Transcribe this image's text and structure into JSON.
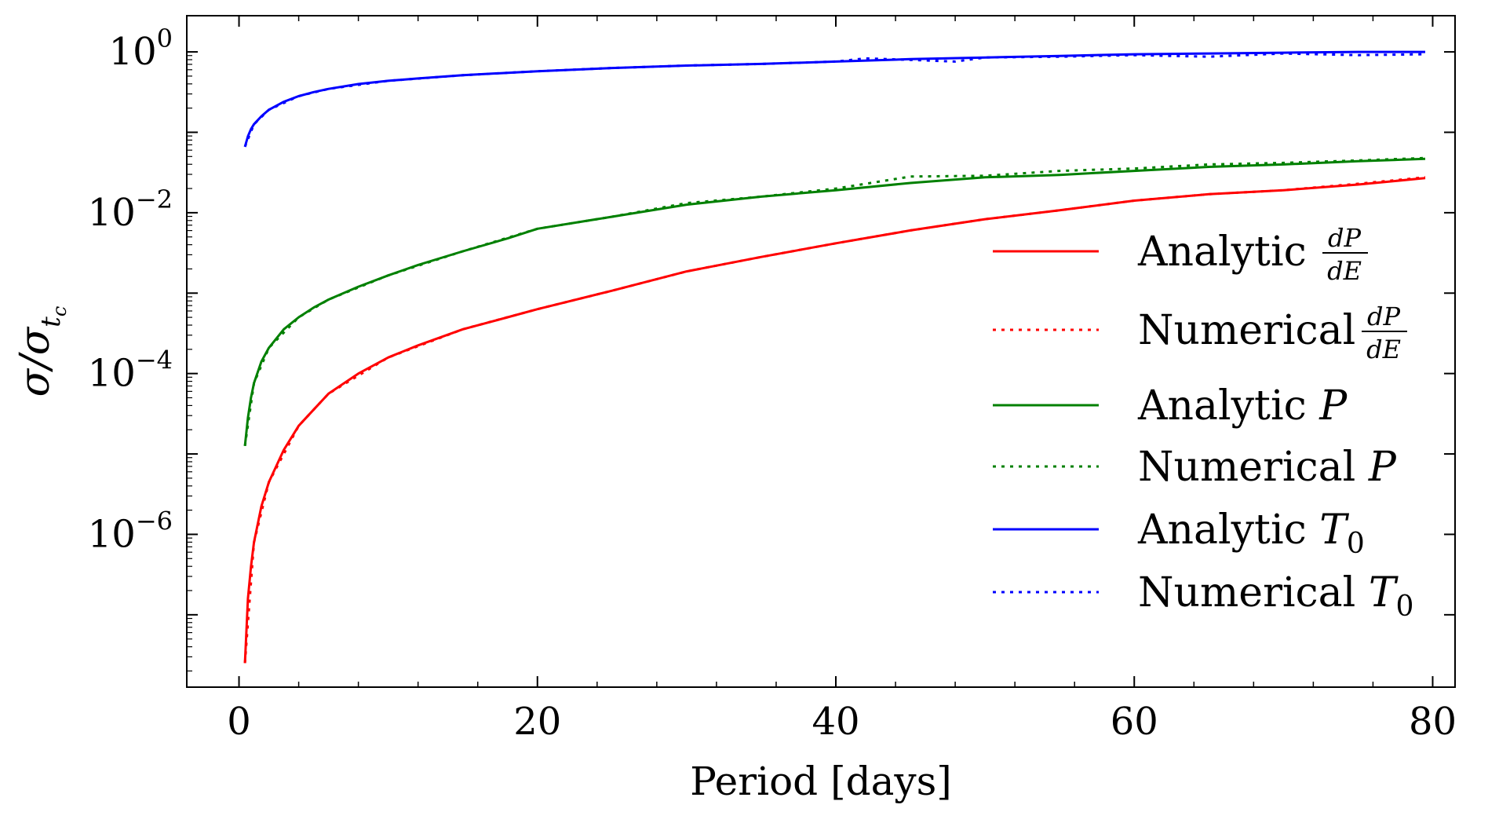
{
  "chart_data": {
    "type": "line",
    "title": "",
    "xlabel": "Period [days]",
    "ylabel": {
      "base": "σ/σ",
      "subscript": "t",
      "sub_subscript": "c"
    },
    "xlim": [
      -3.5,
      81.5
    ],
    "ylim_log10": [
      -7.9,
      0.45
    ],
    "y_scale": "log",
    "x_ticks": [
      0,
      20,
      40,
      60,
      80
    ],
    "y_ticks": [
      {
        "base": "10",
        "exp": "0",
        "value": 1
      },
      {
        "base": "10",
        "exp": "−2",
        "value": 0.01
      },
      {
        "base": "10",
        "exp": "−4",
        "value": 0.0001
      },
      {
        "base": "10",
        "exp": "−6",
        "value": 1e-06
      }
    ],
    "legend_position": "right",
    "legend": [
      {
        "series": "dPdE_analytic",
        "label": "Analytic",
        "math": "dP/dE",
        "math_type": "fraction",
        "num": "dP",
        "den": "dE",
        "color": "#ff0000",
        "style": "solid"
      },
      {
        "series": "dPdE_numerical",
        "label": "Numerical",
        "math": "dP/dE",
        "math_type": "fraction",
        "num": "dP",
        "den": "dE",
        "color": "#ff0000",
        "style": "dotted"
      },
      {
        "series": "P_analytic",
        "label": "Analytic",
        "math": "P",
        "math_type": "italic",
        "color": "#008000",
        "style": "solid"
      },
      {
        "series": "P_numerical",
        "label": "Numerical",
        "math": "P",
        "math_type": "italic",
        "color": "#008000",
        "style": "dotted"
      },
      {
        "series": "T0_analytic",
        "label": "Analytic",
        "math": "T",
        "math_sub": "0",
        "math_type": "subscript",
        "color": "#0000ff",
        "style": "solid"
      },
      {
        "series": "T0_numerical",
        "label": "Numerical",
        "math": "T",
        "math_sub": "0",
        "math_type": "subscript",
        "color": "#0000ff",
        "style": "dotted"
      }
    ],
    "series": [
      {
        "name": "dPdE_analytic",
        "color": "#ff0000",
        "style": "solid",
        "x": [
          0.4,
          0.6,
          0.8,
          1,
          1.5,
          2,
          3,
          4,
          5,
          6,
          8,
          10,
          12,
          15,
          18,
          20,
          25,
          30,
          35,
          40,
          45,
          50,
          55,
          60,
          65,
          70,
          75,
          79.5
        ],
        "y_log10": [
          -7.6,
          -6.8,
          -6.4,
          -6.1,
          -5.65,
          -5.35,
          -4.95,
          -4.65,
          -4.45,
          -4.25,
          -4.0,
          -3.8,
          -3.65,
          -3.45,
          -3.3,
          -3.2,
          -2.97,
          -2.73,
          -2.55,
          -2.38,
          -2.22,
          -2.08,
          -1.97,
          -1.85,
          -1.77,
          -1.72,
          -1.65,
          -1.57
        ]
      },
      {
        "name": "dPdE_numerical",
        "color": "#ff0000",
        "style": "dotted",
        "x": [
          0.4,
          1,
          2,
          4,
          6,
          10,
          15,
          20,
          25,
          30,
          35,
          40,
          45,
          50,
          55,
          60,
          65,
          70,
          75,
          79.5
        ],
        "y_log10": [
          -7.6,
          -6.1,
          -5.35,
          -4.65,
          -4.25,
          -3.8,
          -3.45,
          -3.2,
          -2.97,
          -2.73,
          -2.55,
          -2.38,
          -2.22,
          -2.08,
          -1.97,
          -1.85,
          -1.77,
          -1.72,
          -1.64,
          -1.56
        ]
      },
      {
        "name": "P_analytic",
        "color": "#008000",
        "style": "solid",
        "x": [
          0.4,
          0.6,
          0.8,
          1,
          1.5,
          2,
          3,
          4,
          5,
          6,
          8,
          10,
          12,
          15,
          18,
          20,
          25,
          30,
          35,
          40,
          45,
          50,
          55,
          60,
          65,
          70,
          75,
          79.5
        ],
        "y_log10": [
          -4.9,
          -4.55,
          -4.3,
          -4.12,
          -3.85,
          -3.68,
          -3.45,
          -3.3,
          -3.18,
          -3.08,
          -2.92,
          -2.78,
          -2.65,
          -2.48,
          -2.32,
          -2.2,
          -2.05,
          -1.9,
          -1.8,
          -1.72,
          -1.63,
          -1.56,
          -1.53,
          -1.48,
          -1.43,
          -1.4,
          -1.36,
          -1.33
        ]
      },
      {
        "name": "P_numerical",
        "color": "#008000",
        "style": "dotted",
        "x": [
          0.4,
          1,
          2,
          4,
          6,
          10,
          15,
          20,
          25,
          30,
          35,
          40,
          45,
          50,
          55,
          60,
          65,
          70,
          75,
          79.5
        ],
        "y_log10": [
          -4.9,
          -4.12,
          -3.68,
          -3.3,
          -3.08,
          -2.78,
          -2.48,
          -2.2,
          -2.05,
          -1.88,
          -1.8,
          -1.7,
          -1.55,
          -1.54,
          -1.48,
          -1.45,
          -1.4,
          -1.38,
          -1.35,
          -1.32
        ]
      },
      {
        "name": "T0_analytic",
        "color": "#0000ff",
        "style": "solid",
        "x": [
          0.4,
          0.6,
          0.8,
          1,
          1.5,
          2,
          3,
          4,
          5,
          6,
          8,
          10,
          12,
          15,
          18,
          20,
          25,
          30,
          35,
          40,
          45,
          50,
          55,
          60,
          65,
          70,
          75,
          79.5
        ],
        "y_log10": [
          -1.18,
          -1.05,
          -0.96,
          -0.9,
          -0.8,
          -0.72,
          -0.62,
          -0.55,
          -0.5,
          -0.46,
          -0.4,
          -0.36,
          -0.33,
          -0.29,
          -0.26,
          -0.24,
          -0.2,
          -0.17,
          -0.15,
          -0.12,
          -0.09,
          -0.07,
          -0.05,
          -0.03,
          -0.02,
          -0.01,
          0.0,
          0.0
        ]
      },
      {
        "name": "T0_numerical",
        "color": "#0000ff",
        "style": "dotted",
        "x": [
          0.4,
          1,
          2,
          4,
          6,
          10,
          15,
          20,
          25,
          30,
          35,
          40,
          42,
          45,
          48,
          50,
          55,
          60,
          65,
          70,
          75,
          79.5
        ],
        "y_log10": [
          -1.18,
          -0.9,
          -0.72,
          -0.55,
          -0.46,
          -0.36,
          -0.29,
          -0.24,
          -0.2,
          -0.17,
          -0.15,
          -0.12,
          -0.08,
          -0.1,
          -0.12,
          -0.07,
          -0.06,
          -0.04,
          -0.06,
          -0.02,
          -0.04,
          -0.03
        ]
      }
    ]
  }
}
